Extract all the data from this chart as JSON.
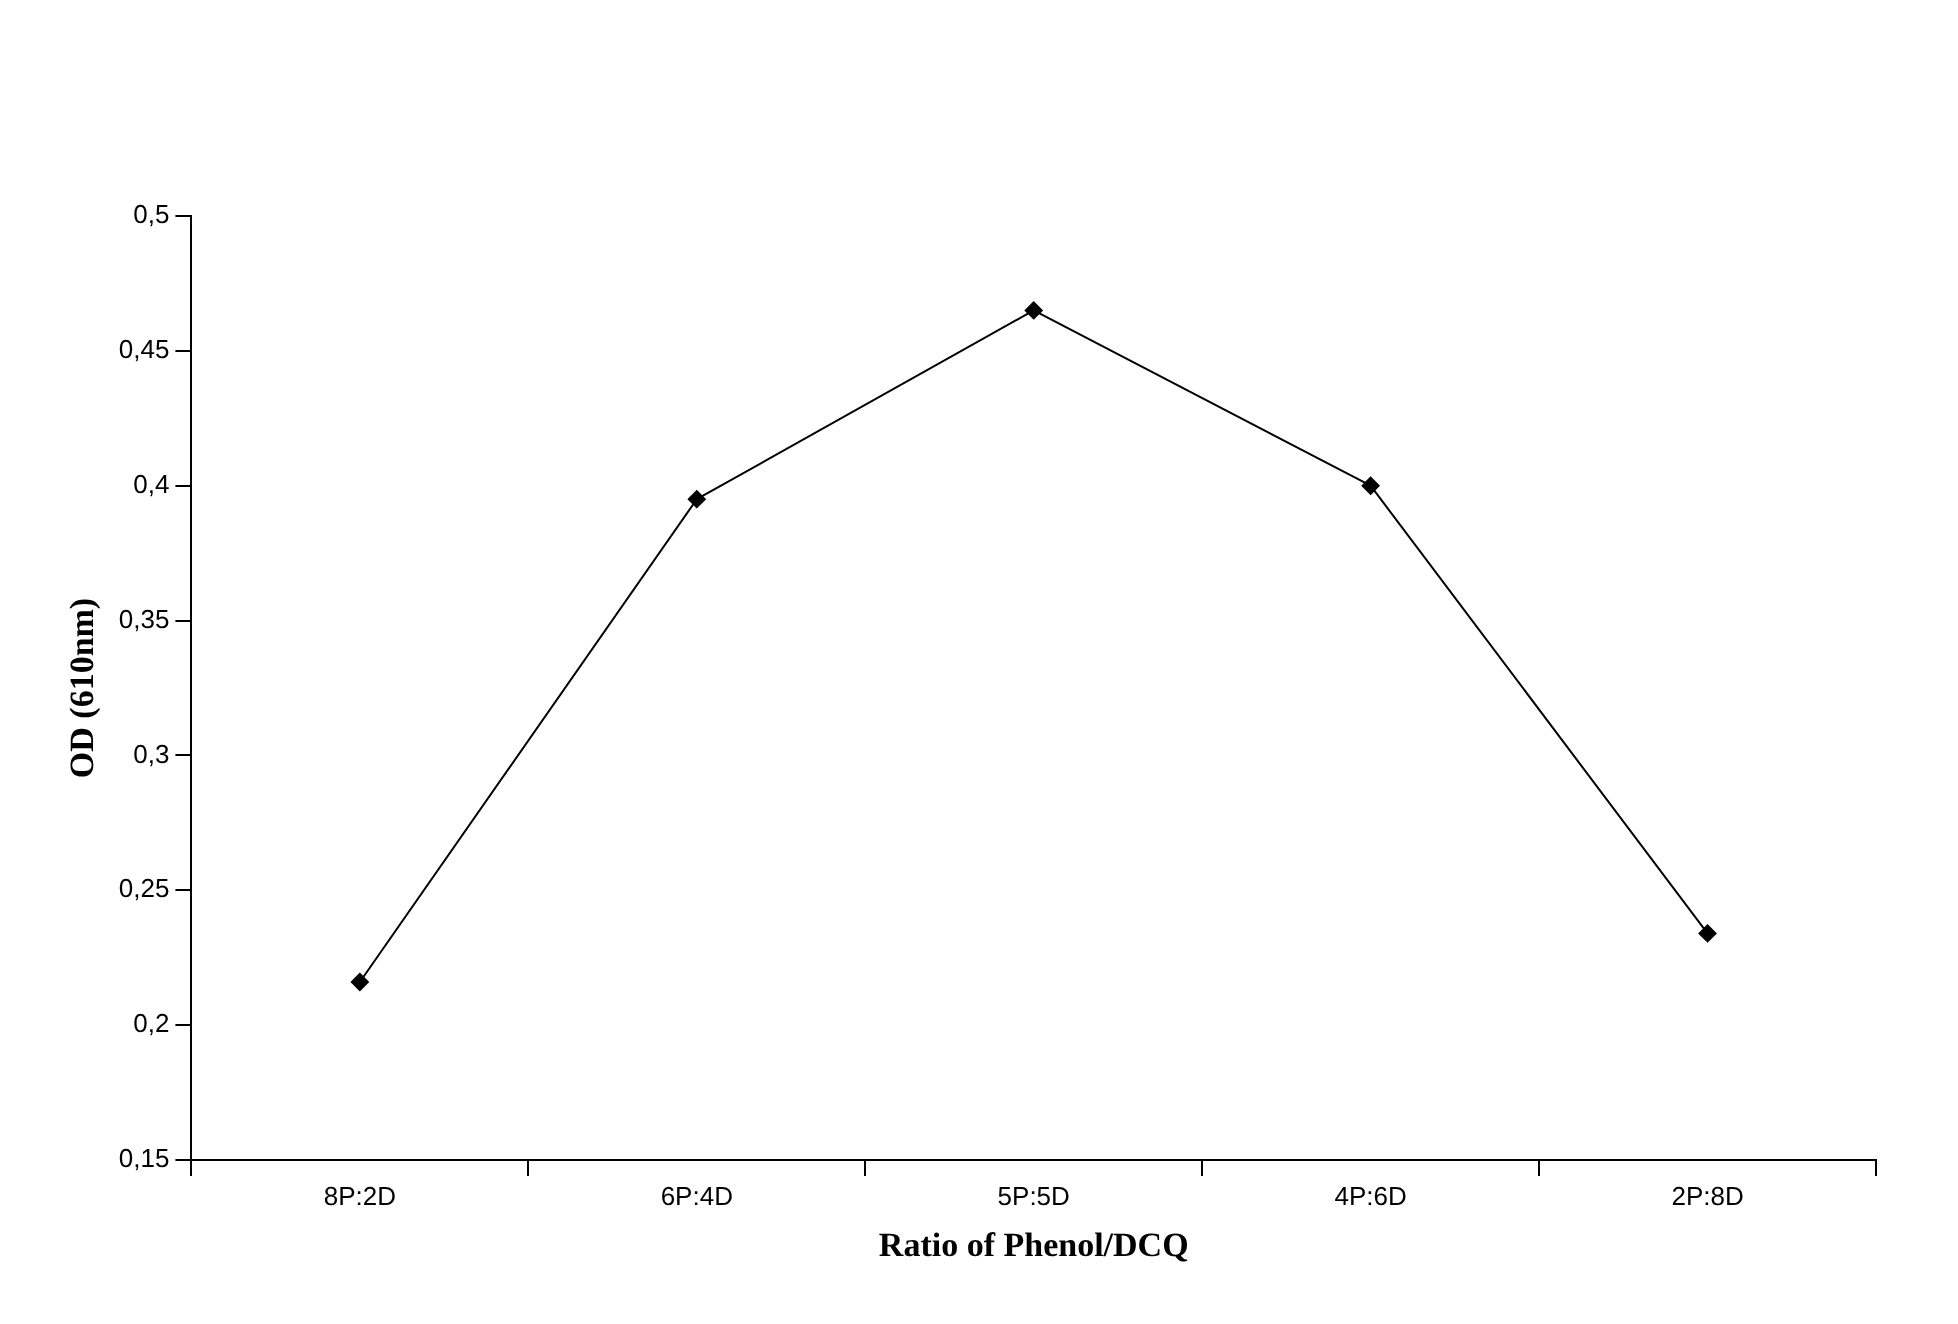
{
  "chart_data": {
    "type": "line",
    "xlabel": "Ratio of Phenol/DCQ",
    "ylabel": "OD (610nm)",
    "categories": [
      "8P:2D",
      "6P:4D",
      "5P:5D",
      "4P:6D",
      "2P:8D"
    ],
    "series": [
      {
        "color": "#000000",
        "values": [
          0.216,
          0.395,
          0.465,
          0.4,
          0.234
        ]
      }
    ],
    "ylim": [
      0.15,
      0.5
    ],
    "yticks": [
      {
        "value": 0.15,
        "label": "0,15"
      },
      {
        "value": 0.2,
        "label": "0,2"
      },
      {
        "value": 0.25,
        "label": "0,25"
      },
      {
        "value": 0.3,
        "label": "0,3"
      },
      {
        "value": 0.35,
        "label": "0,35"
      },
      {
        "value": 0.4,
        "label": "0,4"
      },
      {
        "value": 0.45,
        "label": "0,45"
      },
      {
        "value": 0.5,
        "label": "0,5"
      }
    ],
    "grid": false,
    "legend": false,
    "marker": "diamond",
    "line_style": "solid"
  }
}
